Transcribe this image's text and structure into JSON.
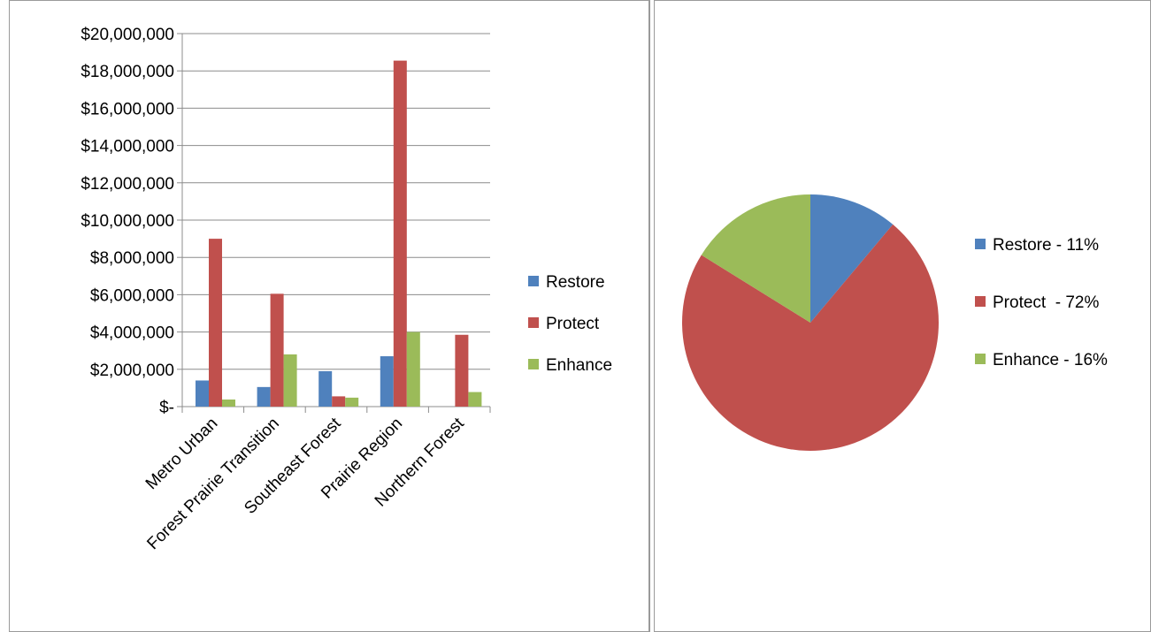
{
  "chart_data": [
    {
      "type": "bar",
      "categories": [
        "Metro Urban",
        "Forest Prairie Transition",
        "Southeast Forest",
        "Prairie Region",
        "Northern Forest"
      ],
      "series": [
        {
          "name": "Restore",
          "color": "#4F81BD",
          "values": [
            1400000,
            1050000,
            1900000,
            2700000,
            0
          ]
        },
        {
          "name": "Protect",
          "color": "#C0504D",
          "values": [
            9000000,
            6050000,
            550000,
            18550000,
            3850000
          ]
        },
        {
          "name": "Enhance",
          "color": "#9BBB59",
          "values": [
            380000,
            2800000,
            480000,
            4000000,
            780000
          ]
        }
      ],
      "ylim": [
        0,
        20000000
      ],
      "ytick_values": [
        0,
        2000000,
        4000000,
        6000000,
        8000000,
        10000000,
        12000000,
        14000000,
        16000000,
        18000000,
        20000000
      ],
      "ytick_labels": [
        "$-",
        "$2,000,000",
        "$4,000,000",
        "$6,000,000",
        "$8,000,000",
        "$10,000,000",
        "$12,000,000",
        "$14,000,000",
        "$16,000,000",
        "$18,000,000",
        "$20,000,000"
      ],
      "grid": true,
      "legend": "right",
      "title": "",
      "xlabel": "",
      "ylabel": ""
    },
    {
      "type": "pie",
      "slices": [
        {
          "name": "Restore",
          "label": "Restore - 11%",
          "value": 11,
          "color": "#4F81BD"
        },
        {
          "name": "Protect",
          "label": "Protect  - 72%",
          "value": 72,
          "color": "#C0504D"
        },
        {
          "name": "Enhance",
          "label": "Enhance - 16%",
          "value": 16,
          "color": "#9BBB59"
        }
      ],
      "legend": "right",
      "title": ""
    }
  ]
}
